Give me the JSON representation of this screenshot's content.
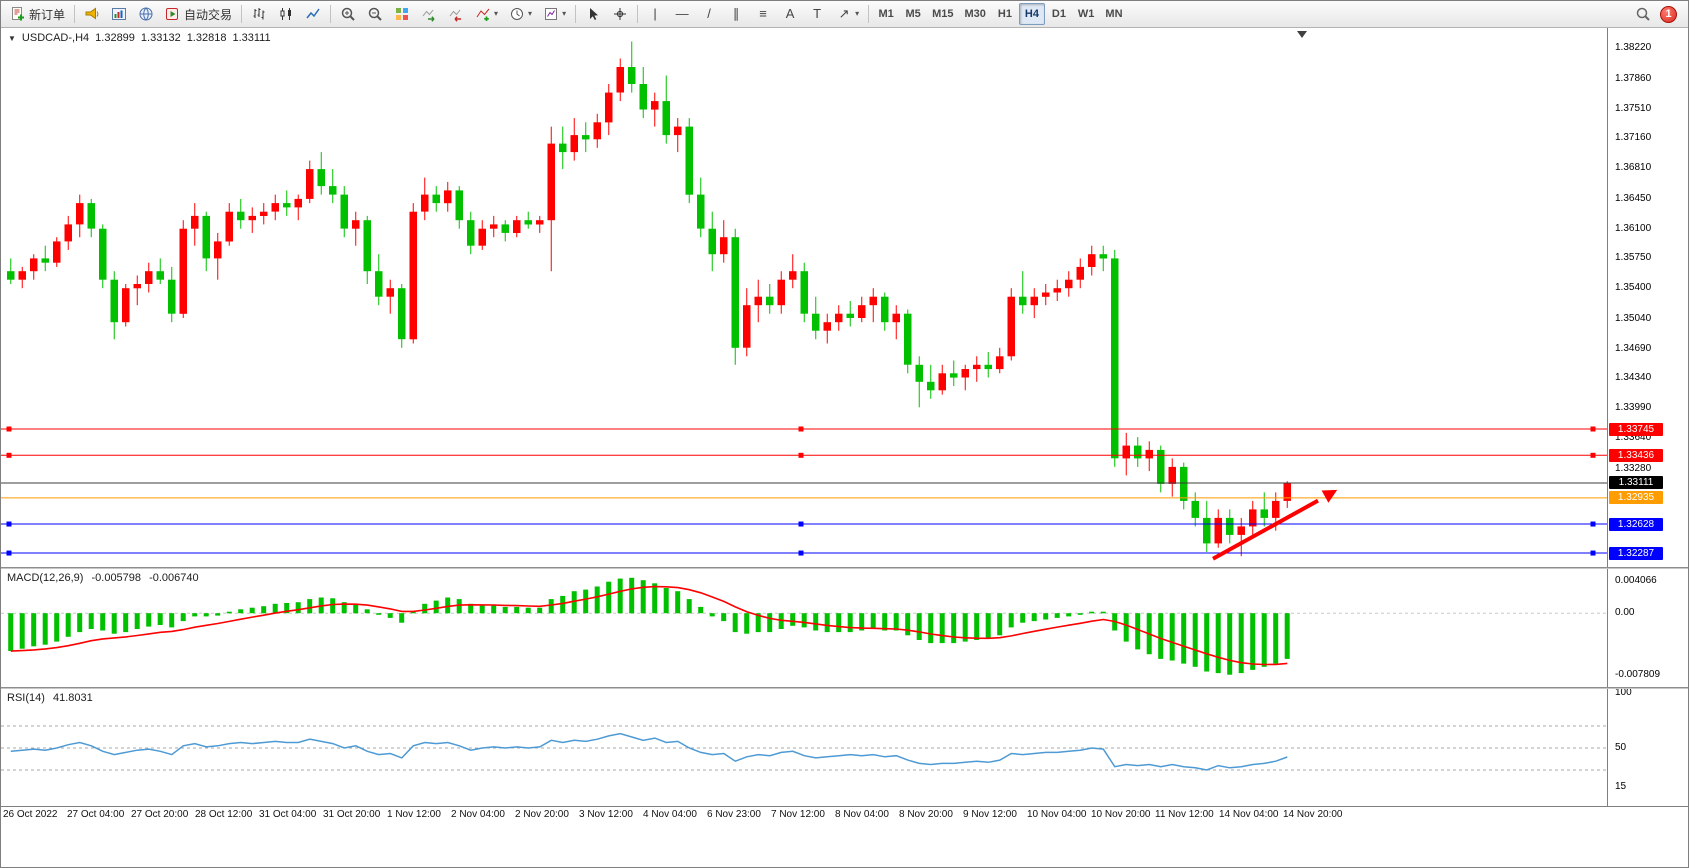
{
  "toolbar": {
    "new_order_label": "新订单",
    "auto_trading_label": "自动交易",
    "timeframes": [
      "M1",
      "M5",
      "M15",
      "M30",
      "H1",
      "H4",
      "D1",
      "W1",
      "MN"
    ],
    "active_timeframe": "H4",
    "notification_count": "1",
    "glyphs": {
      "vertical_line": "|",
      "horizontal_line": "—",
      "trendline": "/",
      "channel": "∥",
      "fibonacci": "≡",
      "text_tool": "A",
      "label_tool": "T",
      "arrows_tool": "↗",
      "caret": "▾",
      "collapse_arrow": "▼"
    }
  },
  "chart": {
    "symbol_header": "USDCAD-,H4",
    "open": "1.32899",
    "high": "1.33132",
    "low": "1.32818",
    "close": "1.33111"
  },
  "panes": {
    "macd_name": "MACD(12,26,9)",
    "macd_main_value": "-0.005798",
    "macd_signal_value": "-0.006740",
    "rsi_name": "RSI(14)",
    "rsi_value": "41.8031"
  },
  "chart_data": {
    "type": "candlestick",
    "symbol": "USDCAD-",
    "timeframe": "H4",
    "colors": {
      "bull": "#ff0000",
      "bear": "#00c000",
      "background": "#ffffff"
    },
    "price_axis": {
      "min": 1.3217,
      "max": 1.384,
      "ticks": [
        "1.38220",
        "1.37860",
        "1.37510",
        "1.37160",
        "1.36810",
        "1.36450",
        "1.36100",
        "1.35750",
        "1.35400",
        "1.35040",
        "1.34690",
        "1.34340",
        "1.33990",
        "1.33640",
        "1.33280",
        "1.32930",
        "1.32580",
        "1.32230"
      ]
    },
    "hlines": [
      {
        "price": 1.33745,
        "label": "1.33745",
        "color": "#ff0000",
        "handles": true
      },
      {
        "price": 1.33436,
        "label": "1.33436",
        "color": "#ff0000",
        "handles": true
      },
      {
        "price": 1.33111,
        "label": "1.33111",
        "color": "#3c3c3c",
        "label_bg": "#000000",
        "handles": false
      },
      {
        "price": 1.32935,
        "label": "1.32935",
        "color": "#ff9c00",
        "handles": false
      },
      {
        "price": 1.32628,
        "label": "1.32628",
        "color": "#0000ff",
        "handles": true
      },
      {
        "price": 1.32287,
        "label": "1.32287",
        "color": "#0000ff",
        "handles": true
      }
    ],
    "annotations": [
      {
        "type": "arrow",
        "color": "#ff0000",
        "from_price": 1.3222,
        "to_price": 1.3295
      }
    ],
    "candles": [
      [
        1.356,
        1.3575,
        1.3545,
        1.355
      ],
      [
        1.355,
        1.3565,
        1.354,
        1.356
      ],
      [
        1.356,
        1.358,
        1.355,
        1.3575
      ],
      [
        1.3575,
        1.359,
        1.356,
        1.357
      ],
      [
        1.357,
        1.36,
        1.3565,
        1.3595
      ],
      [
        1.3595,
        1.3625,
        1.3585,
        1.3615
      ],
      [
        1.3615,
        1.365,
        1.36,
        1.364
      ],
      [
        1.364,
        1.3645,
        1.36,
        1.361
      ],
      [
        1.361,
        1.3615,
        1.354,
        1.355
      ],
      [
        1.355,
        1.356,
        1.348,
        1.35
      ],
      [
        1.35,
        1.3545,
        1.3495,
        1.354
      ],
      [
        1.354,
        1.3555,
        1.352,
        1.3545
      ],
      [
        1.3545,
        1.357,
        1.3535,
        1.356
      ],
      [
        1.356,
        1.3575,
        1.3545,
        1.355
      ],
      [
        1.355,
        1.3565,
        1.35,
        1.351
      ],
      [
        1.351,
        1.362,
        1.3505,
        1.361
      ],
      [
        1.361,
        1.364,
        1.359,
        1.3625
      ],
      [
        1.3625,
        1.363,
        1.356,
        1.3575
      ],
      [
        1.3575,
        1.3605,
        1.355,
        1.3595
      ],
      [
        1.3595,
        1.364,
        1.359,
        1.363
      ],
      [
        1.363,
        1.3645,
        1.361,
        1.362
      ],
      [
        1.362,
        1.3635,
        1.3605,
        1.3625
      ],
      [
        1.3625,
        1.364,
        1.3615,
        1.363
      ],
      [
        1.363,
        1.365,
        1.362,
        1.364
      ],
      [
        1.364,
        1.3655,
        1.3625,
        1.3635
      ],
      [
        1.3635,
        1.365,
        1.362,
        1.3645
      ],
      [
        1.3645,
        1.369,
        1.364,
        1.368
      ],
      [
        1.368,
        1.37,
        1.365,
        1.366
      ],
      [
        1.366,
        1.368,
        1.364,
        1.365
      ],
      [
        1.365,
        1.366,
        1.36,
        1.361
      ],
      [
        1.361,
        1.363,
        1.359,
        1.362
      ],
      [
        1.362,
        1.3625,
        1.3545,
        1.356
      ],
      [
        1.356,
        1.358,
        1.352,
        1.353
      ],
      [
        1.353,
        1.355,
        1.351,
        1.354
      ],
      [
        1.354,
        1.3545,
        1.347,
        1.348
      ],
      [
        1.348,
        1.364,
        1.3475,
        1.363
      ],
      [
        1.363,
        1.367,
        1.362,
        1.365
      ],
      [
        1.365,
        1.366,
        1.363,
        1.364
      ],
      [
        1.364,
        1.3665,
        1.363,
        1.3655
      ],
      [
        1.3655,
        1.366,
        1.361,
        1.362
      ],
      [
        1.362,
        1.363,
        1.358,
        1.359
      ],
      [
        1.359,
        1.362,
        1.3585,
        1.361
      ],
      [
        1.361,
        1.3625,
        1.36,
        1.3615
      ],
      [
        1.3615,
        1.362,
        1.3595,
        1.3605
      ],
      [
        1.3605,
        1.3625,
        1.36,
        1.362
      ],
      [
        1.362,
        1.363,
        1.361,
        1.3615
      ],
      [
        1.3615,
        1.3625,
        1.3605,
        1.362
      ],
      [
        1.362,
        1.373,
        1.356,
        1.371
      ],
      [
        1.371,
        1.373,
        1.368,
        1.37
      ],
      [
        1.37,
        1.374,
        1.369,
        1.372
      ],
      [
        1.372,
        1.3735,
        1.37,
        1.3715
      ],
      [
        1.3715,
        1.3745,
        1.3705,
        1.3735
      ],
      [
        1.3735,
        1.378,
        1.372,
        1.377
      ],
      [
        1.377,
        1.381,
        1.376,
        1.38
      ],
      [
        1.38,
        1.383,
        1.377,
        1.378
      ],
      [
        1.378,
        1.38,
        1.374,
        1.375
      ],
      [
        1.375,
        1.377,
        1.373,
        1.376
      ],
      [
        1.376,
        1.379,
        1.371,
        1.372
      ],
      [
        1.372,
        1.374,
        1.37,
        1.373
      ],
      [
        1.373,
        1.374,
        1.364,
        1.365
      ],
      [
        1.365,
        1.367,
        1.36,
        1.361
      ],
      [
        1.361,
        1.363,
        1.356,
        1.358
      ],
      [
        1.358,
        1.362,
        1.357,
        1.36
      ],
      [
        1.36,
        1.361,
        1.345,
        1.347
      ],
      [
        1.347,
        1.354,
        1.346,
        1.352
      ],
      [
        1.352,
        1.355,
        1.35,
        1.353
      ],
      [
        1.353,
        1.3545,
        1.351,
        1.352
      ],
      [
        1.352,
        1.356,
        1.351,
        1.355
      ],
      [
        1.355,
        1.358,
        1.354,
        1.356
      ],
      [
        1.356,
        1.357,
        1.35,
        1.351
      ],
      [
        1.351,
        1.353,
        1.348,
        1.349
      ],
      [
        1.349,
        1.351,
        1.3475,
        1.35
      ],
      [
        1.35,
        1.352,
        1.349,
        1.351
      ],
      [
        1.351,
        1.3525,
        1.3495,
        1.3505
      ],
      [
        1.3505,
        1.353,
        1.35,
        1.352
      ],
      [
        1.352,
        1.354,
        1.35,
        1.353
      ],
      [
        1.353,
        1.3535,
        1.349,
        1.35
      ],
      [
        1.35,
        1.352,
        1.348,
        1.351
      ],
      [
        1.351,
        1.3515,
        1.344,
        1.345
      ],
      [
        1.345,
        1.346,
        1.34,
        1.343
      ],
      [
        1.343,
        1.345,
        1.341,
        1.342
      ],
      [
        1.342,
        1.345,
        1.3415,
        1.344
      ],
      [
        1.344,
        1.3455,
        1.3425,
        1.3435
      ],
      [
        1.3435,
        1.345,
        1.342,
        1.3445
      ],
      [
        1.3445,
        1.346,
        1.343,
        1.345
      ],
      [
        1.345,
        1.3465,
        1.3435,
        1.3445
      ],
      [
        1.3445,
        1.347,
        1.344,
        1.346
      ],
      [
        1.346,
        1.354,
        1.3455,
        1.353
      ],
      [
        1.353,
        1.356,
        1.351,
        1.352
      ],
      [
        1.352,
        1.354,
        1.3505,
        1.353
      ],
      [
        1.353,
        1.3545,
        1.352,
        1.3535
      ],
      [
        1.3535,
        1.355,
        1.3525,
        1.354
      ],
      [
        1.354,
        1.356,
        1.353,
        1.355
      ],
      [
        1.355,
        1.3575,
        1.354,
        1.3565
      ],
      [
        1.3565,
        1.359,
        1.3555,
        1.358
      ],
      [
        1.358,
        1.359,
        1.356,
        1.3575
      ],
      [
        1.3575,
        1.3585,
        1.333,
        1.334
      ],
      [
        1.334,
        1.337,
        1.332,
        1.3355
      ],
      [
        1.3355,
        1.3365,
        1.333,
        1.334
      ],
      [
        1.334,
        1.336,
        1.3325,
        1.335
      ],
      [
        1.335,
        1.3355,
        1.33,
        1.331
      ],
      [
        1.331,
        1.334,
        1.3295,
        1.333
      ],
      [
        1.333,
        1.3335,
        1.328,
        1.329
      ],
      [
        1.329,
        1.33,
        1.326,
        1.327
      ],
      [
        1.327,
        1.329,
        1.323,
        1.324
      ],
      [
        1.324,
        1.328,
        1.3235,
        1.327
      ],
      [
        1.327,
        1.328,
        1.324,
        1.325
      ],
      [
        1.325,
        1.327,
        1.3225,
        1.326
      ],
      [
        1.326,
        1.329,
        1.325,
        1.328
      ],
      [
        1.328,
        1.33,
        1.326,
        1.327
      ],
      [
        1.327,
        1.33,
        1.3255,
        1.329
      ],
      [
        1.32899,
        1.33132,
        1.32818,
        1.33111
      ]
    ],
    "indicators": {
      "macd": {
        "name": "MACD(12,26,9)",
        "main": -0.005798,
        "signal": -0.00674,
        "histogram_color": "#00c000",
        "signal_color": "#ff0000",
        "range": [
          -0.0086,
          0.0046
        ],
        "axis_ticks": [
          {
            "text": "0.004066",
            "v": 0.004066
          },
          {
            "text": "0.00",
            "v": 0
          },
          {
            "text": "-0.007809",
            "v": -0.007809
          }
        ],
        "histogram": [
          -0.0048,
          -0.0045,
          -0.0042,
          -0.004,
          -0.0036,
          -0.003,
          -0.0024,
          -0.002,
          -0.0022,
          -0.0026,
          -0.0024,
          -0.002,
          -0.0017,
          -0.0015,
          -0.0018,
          -0.001,
          -0.0004,
          -0.0004,
          -0.0003,
          0.0002,
          0.0005,
          0.0007,
          0.0009,
          0.0012,
          0.0013,
          0.0014,
          0.0018,
          0.002,
          0.0019,
          0.0014,
          0.0011,
          0.0005,
          -0.0002,
          -0.0006,
          -0.0012,
          0.0002,
          0.0012,
          0.0016,
          0.002,
          0.0018,
          0.0012,
          0.001,
          0.001,
          0.0008,
          0.0008,
          0.0007,
          0.0007,
          0.0018,
          0.0022,
          0.0028,
          0.003,
          0.0034,
          0.004,
          0.0044,
          0.0045,
          0.0042,
          0.0038,
          0.0032,
          0.0028,
          0.0018,
          0.0008,
          -0.0004,
          -0.001,
          -0.0024,
          -0.0026,
          -0.0024,
          -0.0024,
          -0.002,
          -0.0016,
          -0.0018,
          -0.0022,
          -0.0024,
          -0.0024,
          -0.0024,
          -0.0022,
          -0.002,
          -0.0022,
          -0.0022,
          -0.0028,
          -0.0034,
          -0.0038,
          -0.0038,
          -0.0038,
          -0.0036,
          -0.0034,
          -0.0032,
          -0.0028,
          -0.0018,
          -0.0012,
          -0.001,
          -0.0008,
          -0.0006,
          -0.0004,
          -0.0002,
          0.0002,
          0.0002,
          -0.0022,
          -0.0036,
          -0.0046,
          -0.0052,
          -0.0058,
          -0.006,
          -0.0064,
          -0.0068,
          -0.0074,
          -0.0076,
          -0.0078,
          -0.0076,
          -0.0072,
          -0.0068,
          -0.0064,
          -0.005798
        ]
      },
      "rsi": {
        "name": "RSI(14)",
        "value": 41.8031,
        "line_color": "#4d9ad4",
        "range": [
          0,
          100
        ],
        "levels": [
          70,
          50,
          30
        ],
        "axis_ticks": [
          {
            "text": "100",
            "v": 100
          },
          {
            "text": "50",
            "v": 50
          },
          {
            "text": "15",
            "v": 15
          }
        ],
        "values": [
          47,
          48,
          49,
          48,
          50,
          53,
          55,
          52,
          47,
          44,
          46,
          48,
          49,
          47,
          44,
          52,
          54,
          51,
          52,
          54,
          55,
          54,
          55,
          56,
          55,
          55,
          58,
          56,
          54,
          50,
          52,
          47,
          44,
          45,
          41,
          52,
          55,
          54,
          55,
          52,
          48,
          50,
          51,
          50,
          51,
          50,
          51,
          57,
          55,
          57,
          56,
          58,
          61,
          63,
          60,
          57,
          59,
          55,
          56,
          50,
          46,
          44,
          45,
          38,
          42,
          44,
          43,
          46,
          47,
          43,
          41,
          42,
          43,
          44,
          43,
          44,
          42,
          43,
          39,
          36,
          35,
          36,
          36,
          37,
          38,
          37,
          39,
          45,
          44,
          45,
          46,
          46,
          47,
          48,
          50,
          49,
          33,
          35,
          34,
          35,
          33,
          35,
          33,
          32,
          30,
          34,
          32,
          33,
          35,
          36,
          38,
          41.8
        ]
      }
    },
    "x_axis_labels": [
      "26 Oct 2022",
      "27 Oct 04:00",
      "27 Oct 20:00",
      "28 Oct 12:00",
      "31 Oct 04:00",
      "31 Oct 20:00",
      "1 Nov 12:00",
      "2 Nov 04:00",
      "2 Nov 20:00",
      "3 Nov 12:00",
      "4 Nov 04:00",
      "6 Nov 23:00",
      "7 Nov 12:00",
      "8 Nov 04:00",
      "8 Nov 20:00",
      "9 Nov 12:00",
      "10 Nov 04:00",
      "10 Nov 20:00",
      "11 Nov 12:00",
      "14 Nov 04:00",
      "14 Nov 20:00"
    ]
  }
}
